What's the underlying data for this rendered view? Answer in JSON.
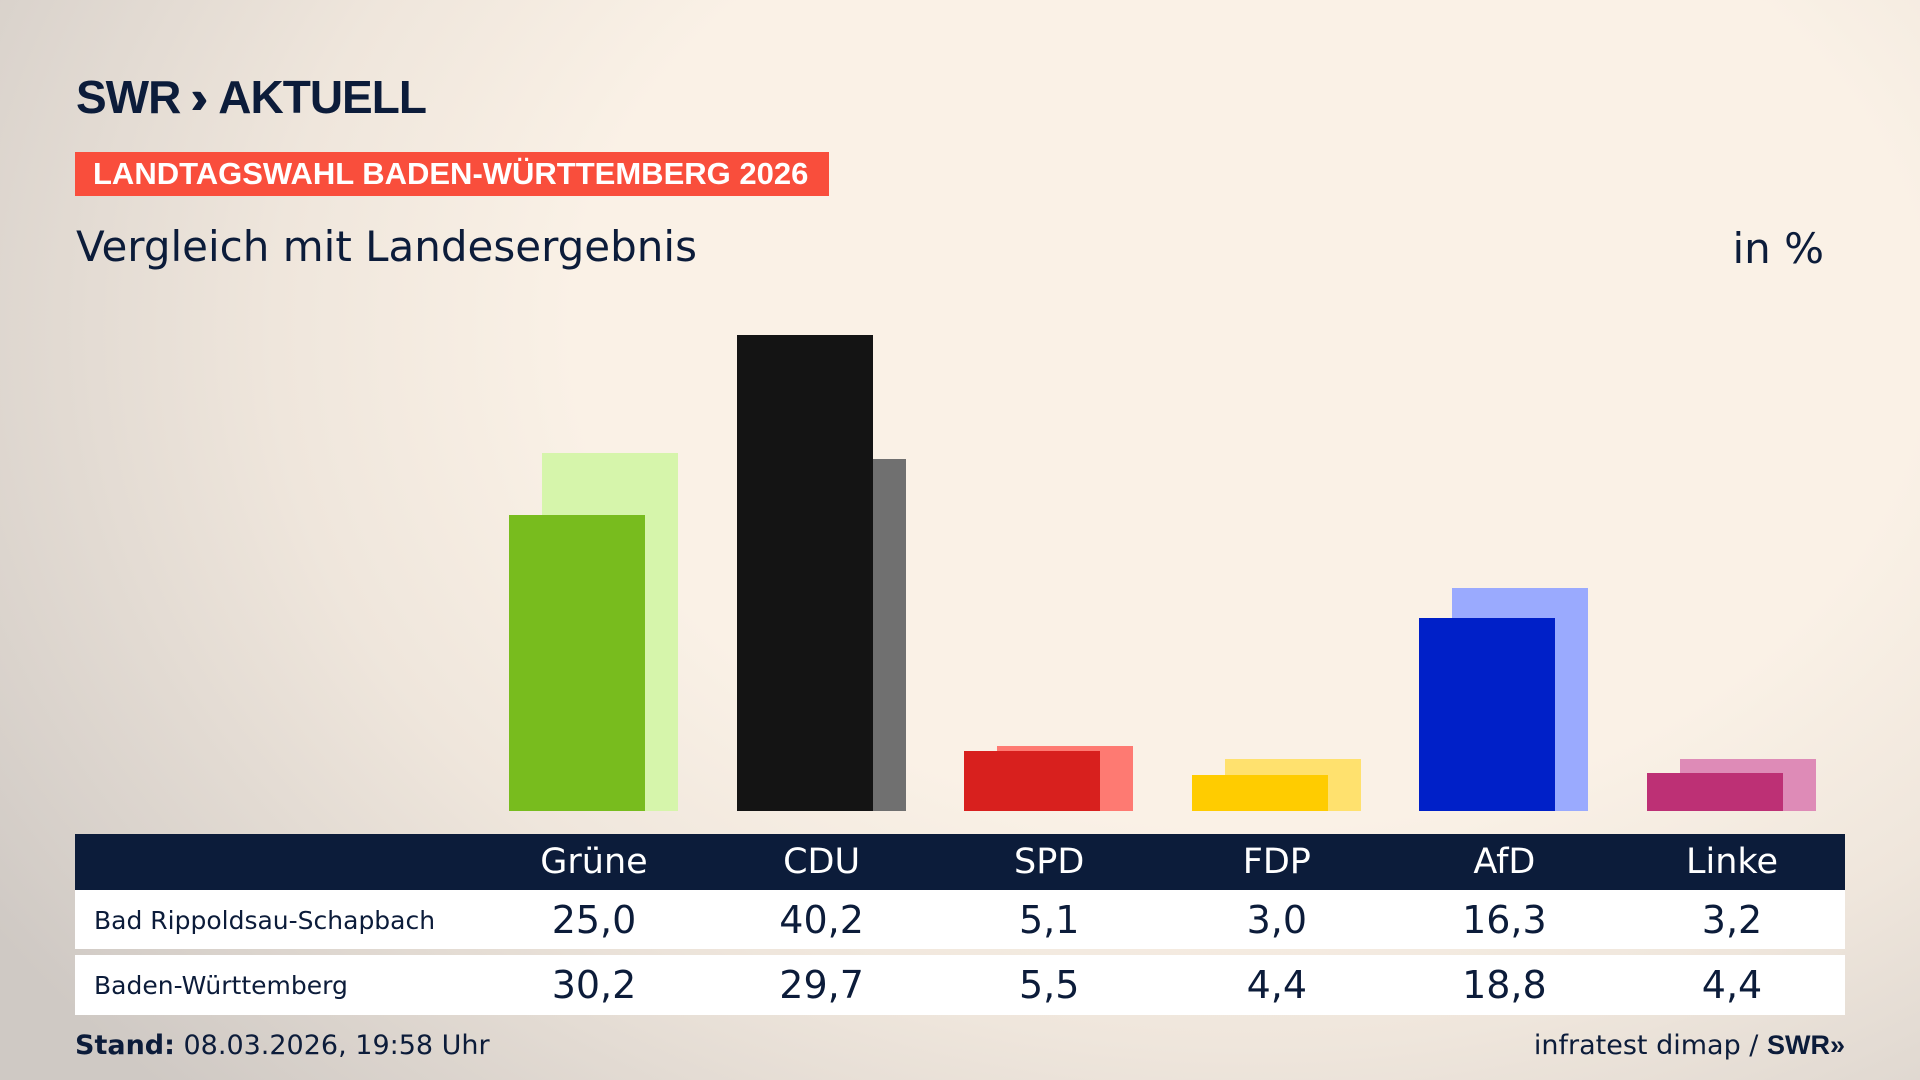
{
  "brand": {
    "logo": "SWR AKTUELL",
    "logo_swr": "SWR",
    "logo_chevron": "»",
    "logo_aktuell": "AKTUELL"
  },
  "banner": "LANDTAGSWAHL BADEN-WÜRTTEMBERG 2026",
  "subtitle": "Vergleich mit Landesergebnis",
  "unit": "in %",
  "chart_data": {
    "type": "bar",
    "categories": [
      "Grüne",
      "CDU",
      "SPD",
      "FDP",
      "AfD",
      "Linke"
    ],
    "series": [
      {
        "name": "Bad Rippoldsau-Schapbach",
        "values": [
          25.0,
          40.2,
          5.1,
          3.0,
          16.3,
          3.2
        ],
        "colors": [
          "#78bc1e",
          "#141414",
          "#d8201e",
          "#ffcc00",
          "#0020c8",
          "#bd3075"
        ]
      },
      {
        "name": "Baden-Württemberg",
        "values": [
          30.2,
          29.7,
          5.5,
          4.4,
          18.8,
          4.4
        ],
        "colors": [
          "#d6f5ab",
          "#707070",
          "#fe7a72",
          "#ffe16e",
          "#9aaafe",
          "#de8bb7"
        ]
      }
    ],
    "ylim": [
      0,
      40.2
    ]
  },
  "table": {
    "headers": [
      "Grüne",
      "CDU",
      "SPD",
      "FDP",
      "AfD",
      "Linke"
    ],
    "rows": [
      {
        "label": "Bad Rippoldsau-Schapbach",
        "values": [
          "25,0",
          "40,2",
          "5,1",
          "3,0",
          "16,3",
          "3,2"
        ]
      },
      {
        "label": "Baden-Württemberg",
        "values": [
          "30,2",
          "29,7",
          "5,5",
          "4,4",
          "18,8",
          "4,4"
        ]
      }
    ]
  },
  "footer": {
    "stand_label": "Stand:",
    "stand_value": " 08.03.2026, 19:58 Uhr",
    "source": "infratest dimap / ",
    "source_logo": "SWR»"
  }
}
